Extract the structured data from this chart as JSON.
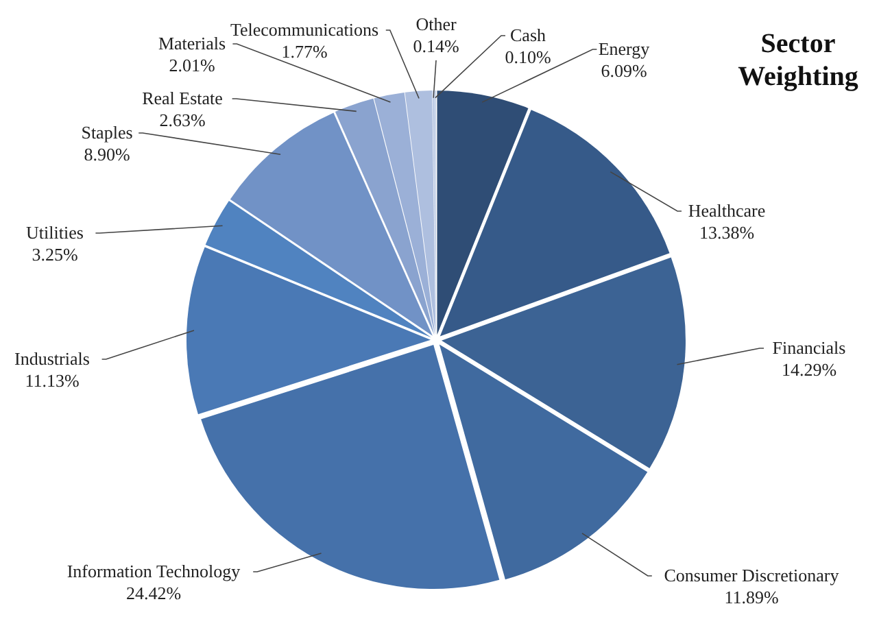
{
  "chart_data": {
    "type": "pie",
    "title": "Sector Weighting",
    "categories": [
      "Energy",
      "Healthcare",
      "Financials",
      "Consumer Discretionary",
      "Information Technology",
      "Industrials",
      "Utilities",
      "Staples",
      "Real Estate",
      "Materials",
      "Telecommunications",
      "Other",
      "Cash"
    ],
    "values": [
      6.09,
      13.38,
      14.29,
      11.89,
      24.42,
      11.13,
      3.25,
      8.9,
      2.63,
      2.01,
      1.77,
      0.14,
      0.1
    ],
    "value_labels": [
      "6.09%",
      "13.38%",
      "14.29%",
      "11.89%",
      "24.42%",
      "11.13%",
      "3.25%",
      "8.90%",
      "2.63%",
      "2.01%",
      "1.77%",
      "0.14%",
      "0.10%"
    ],
    "colors": [
      "#2f4d75",
      "#365a89",
      "#3c6394",
      "#406a9f",
      "#4571aa",
      "#4a79b5",
      "#5083c0",
      "#7192c6",
      "#8aa3cf",
      "#9bb0d7",
      "#aebfdf",
      "#bfcde6",
      "#c9d5ea"
    ]
  }
}
